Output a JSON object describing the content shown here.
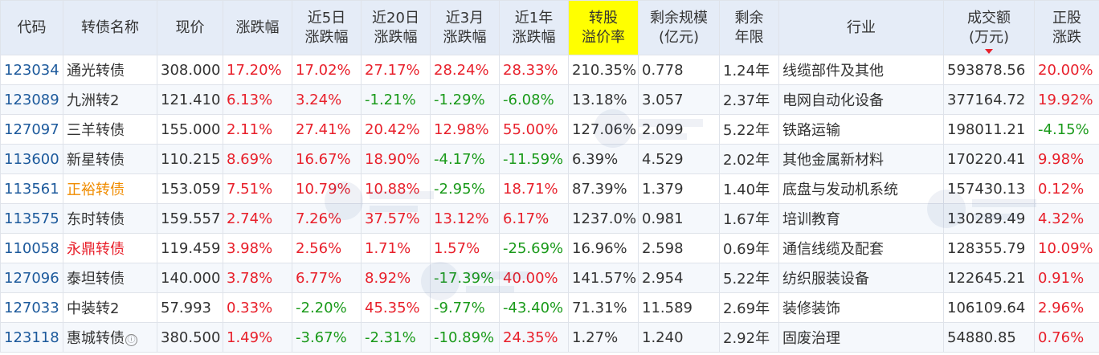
{
  "headers": [
    {
      "lines": [
        "代码"
      ]
    },
    {
      "lines": [
        "转债名称"
      ]
    },
    {
      "lines": [
        "现价"
      ]
    },
    {
      "lines": [
        "涨跌幅"
      ]
    },
    {
      "lines": [
        "近5日",
        "涨跌幅"
      ]
    },
    {
      "lines": [
        "近20日",
        "涨跌幅"
      ]
    },
    {
      "lines": [
        "近3月",
        "涨跌幅"
      ]
    },
    {
      "lines": [
        "近1年",
        "涨跌幅"
      ]
    },
    {
      "lines": [
        "转股",
        "溢价率"
      ],
      "highlight": true
    },
    {
      "lines": [
        "剩余规模",
        "(亿元)"
      ]
    },
    {
      "lines": [
        "剩余",
        "年限"
      ]
    },
    {
      "lines": [
        "行业"
      ]
    },
    {
      "lines": [
        "成交额",
        "(万元)"
      ],
      "sorted": "desc"
    },
    {
      "lines": [
        "正股",
        "涨跌"
      ]
    }
  ],
  "rows": [
    {
      "code": "123034",
      "name": "通光转债",
      "price": "308.000",
      "chg": "17.20%",
      "chg5d": "17.02%",
      "chg20d": "27.17%",
      "chg3m": "28.24%",
      "chg1y": "28.33%",
      "premium": "210.35%",
      "scale": "0.778",
      "years": "1.24年",
      "industry": "线缆部件及其他",
      "turnover": "593878.56",
      "stock_chg": "20.00%"
    },
    {
      "code": "123089",
      "name": "九洲转2",
      "price": "121.410",
      "chg": "6.13%",
      "chg5d": "3.24%",
      "chg20d": "-1.21%",
      "chg3m": "-1.29%",
      "chg1y": "-6.08%",
      "premium": "13.18%",
      "scale": "3.057",
      "years": "2.37年",
      "industry": "电网自动化设备",
      "turnover": "377164.72",
      "stock_chg": "19.92%"
    },
    {
      "code": "127097",
      "name": "三羊转债",
      "price": "155.000",
      "chg": "2.11%",
      "chg5d": "27.41%",
      "chg20d": "20.42%",
      "chg3m": "12.98%",
      "chg1y": "55.00%",
      "premium": "127.06%",
      "scale": "2.099",
      "years": "5.22年",
      "industry": "铁路运输",
      "turnover": "198011.21",
      "stock_chg": "-4.15%"
    },
    {
      "code": "113600",
      "name": "新星转债",
      "price": "110.215",
      "chg": "8.69%",
      "chg5d": "16.67%",
      "chg20d": "18.90%",
      "chg3m": "-4.17%",
      "chg1y": "-11.59%",
      "premium": "6.39%",
      "scale": "4.529",
      "years": "2.02年",
      "industry": "其他金属新材料",
      "turnover": "170220.41",
      "stock_chg": "9.98%"
    },
    {
      "code": "113561",
      "name": "正裕转债",
      "name_color": "#f08c00",
      "price": "153.059",
      "chg": "7.51%",
      "chg5d": "10.79%",
      "chg20d": "10.88%",
      "chg3m": "-2.95%",
      "chg1y": "18.71%",
      "premium": "87.39%",
      "scale": "1.379",
      "years": "1.40年",
      "industry": "底盘与发动机系统",
      "turnover": "157430.13",
      "stock_chg": "0.12%"
    },
    {
      "code": "113575",
      "name": "东时转债",
      "price": "159.557",
      "chg": "2.74%",
      "chg5d": "7.26%",
      "chg20d": "37.57%",
      "chg3m": "13.12%",
      "chg1y": "6.17%",
      "premium": "1237.0%",
      "scale": "0.981",
      "years": "1.67年",
      "industry": "培训教育",
      "turnover": "130289.49",
      "stock_chg": "4.32%"
    },
    {
      "code": "110058",
      "name": "永鼎转债",
      "name_color": "#e8202b",
      "price": "119.459",
      "chg": "3.98%",
      "chg5d": "2.56%",
      "chg20d": "1.71%",
      "chg3m": "1.57%",
      "chg1y": "-25.69%",
      "premium": "16.96%",
      "scale": "2.598",
      "years": "0.69年",
      "industry": "通信线缆及配套",
      "turnover": "128355.79",
      "stock_chg": "10.09%"
    },
    {
      "code": "127096",
      "name": "泰坦转债",
      "price": "140.000",
      "chg": "3.78%",
      "chg5d": "6.77%",
      "chg20d": "8.92%",
      "chg3m": "-17.39%",
      "chg1y": "40.00%",
      "premium": "141.57%",
      "scale": "2.954",
      "years": "5.22年",
      "industry": "纺织服装设备",
      "turnover": "122645.21",
      "stock_chg": "0.91%"
    },
    {
      "code": "127033",
      "name": "中装转2",
      "price": "57.993",
      "chg": "0.33%",
      "chg5d": "-2.20%",
      "chg20d": "45.35%",
      "chg3m": "-9.77%",
      "chg1y": "-43.40%",
      "premium": "71.31%",
      "scale": "11.589",
      "years": "2.69年",
      "industry": "装修装饰",
      "turnover": "106109.64",
      "stock_chg": "2.96%"
    },
    {
      "code": "123118",
      "name": "惠城转债",
      "info_icon": "ⓘ",
      "price": "380.500",
      "chg": "1.49%",
      "chg5d": "-3.67%",
      "chg20d": "-2.31%",
      "chg3m": "-10.89%",
      "chg1y": "24.35%",
      "premium": "1.27%",
      "scale": "1.240",
      "years": "2.92年",
      "industry": "固废治理",
      "turnover": "54880.85",
      "stock_chg": "0.76%"
    }
  ],
  "colors": {
    "up": "#e8202b",
    "down": "#1a9a1a",
    "code": "#1d5a9c",
    "text": "#333333",
    "header_bg": "#e5ecf7",
    "highlight_bg": "#ffff00"
  }
}
